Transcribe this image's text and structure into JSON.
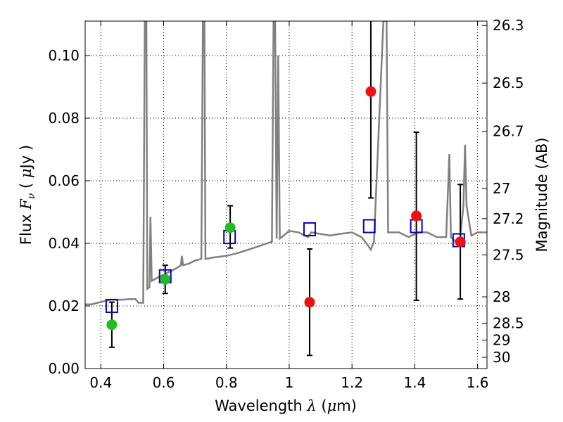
{
  "chart_data": {
    "type": "scatter",
    "xlabel": "Wavelength  λ (μm)",
    "ylabel_left": "Flux  F_ν  ( μJy )",
    "ylabel_right": "Magnitude (AB)",
    "xlim": [
      0.35,
      1.63
    ],
    "ylim": [
      0.0,
      0.111
    ],
    "x_ticks": [
      0.4,
      0.6,
      0.8,
      1.0,
      1.2,
      1.4,
      1.6
    ],
    "x_tick_labels": [
      "0.4",
      "0.6",
      "0.8",
      "1",
      "1.2",
      "1.4",
      "1.6"
    ],
    "y_ticks": [
      0.0,
      0.02,
      0.04,
      0.06,
      0.08,
      0.1
    ],
    "y_tick_labels": [
      "0.00",
      "0.02",
      "0.04",
      "0.06",
      "0.08",
      "0.10"
    ],
    "right_ticks": [
      {
        "label": "26.3",
        "flux": 0.1096
      },
      {
        "label": "26.5",
        "flux": 0.0912
      },
      {
        "label": "26.7",
        "flux": 0.0758
      },
      {
        "label": "27",
        "flux": 0.0575
      },
      {
        "label": "27.2",
        "flux": 0.0479
      },
      {
        "label": "27.5",
        "flux": 0.0363
      },
      {
        "label": "28",
        "flux": 0.0229
      },
      {
        "label": "28.5",
        "flux": 0.0145
      },
      {
        "label": "29",
        "flux": 0.0091
      },
      {
        "label": "30",
        "flux": 0.0036
      }
    ],
    "grid": true,
    "colors": {
      "model": "#808080",
      "model_points": "#0000cc",
      "green_points": "#22bb22",
      "red_points": "#ee1111",
      "errorbar": "#000000"
    },
    "model_spectrum": [
      [
        0.35,
        0.0205
      ],
      [
        0.37,
        0.0205
      ],
      [
        0.39,
        0.021
      ],
      [
        0.41,
        0.0215
      ],
      [
        0.43,
        0.022
      ],
      [
        0.45,
        0.022
      ],
      [
        0.47,
        0.022
      ],
      [
        0.49,
        0.0222
      ],
      [
        0.51,
        0.0222
      ],
      [
        0.52,
        0.021
      ],
      [
        0.535,
        0.021
      ],
      [
        0.54,
        0.111
      ],
      [
        0.545,
        0.111
      ],
      [
        0.548,
        0.0255
      ],
      [
        0.555,
        0.026
      ],
      [
        0.558,
        0.0485
      ],
      [
        0.562,
        0.028
      ],
      [
        0.58,
        0.029
      ],
      [
        0.6,
        0.03
      ],
      [
        0.62,
        0.031
      ],
      [
        0.64,
        0.032
      ],
      [
        0.655,
        0.033
      ],
      [
        0.658,
        0.036
      ],
      [
        0.662,
        0.033
      ],
      [
        0.68,
        0.0335
      ],
      [
        0.7,
        0.0345
      ],
      [
        0.72,
        0.035
      ],
      [
        0.725,
        0.111
      ],
      [
        0.73,
        0.111
      ],
      [
        0.733,
        0.035
      ],
      [
        0.76,
        0.0355
      ],
      [
        0.8,
        0.036
      ],
      [
        0.84,
        0.037
      ],
      [
        0.87,
        0.038
      ],
      [
        0.9,
        0.039
      ],
      [
        0.93,
        0.04
      ],
      [
        0.945,
        0.0405
      ],
      [
        0.95,
        0.111
      ],
      [
        0.955,
        0.111
      ],
      [
        0.96,
        0.0415
      ],
      [
        0.965,
        0.1
      ],
      [
        0.97,
        0.0415
      ],
      [
        1.0,
        0.044
      ],
      [
        1.03,
        0.0435
      ],
      [
        1.06,
        0.042
      ],
      [
        1.07,
        0.0435
      ],
      [
        1.1,
        0.043
      ],
      [
        1.13,
        0.0425
      ],
      [
        1.16,
        0.043
      ],
      [
        1.2,
        0.0435
      ],
      [
        1.23,
        0.042
      ],
      [
        1.25,
        0.0395
      ],
      [
        1.26,
        0.038
      ],
      [
        1.27,
        0.0405
      ],
      [
        1.3,
        0.111
      ],
      [
        1.31,
        0.111
      ],
      [
        1.315,
        0.0435
      ],
      [
        1.35,
        0.0435
      ],
      [
        1.38,
        0.042
      ],
      [
        1.41,
        0.0435
      ],
      [
        1.44,
        0.0435
      ],
      [
        1.47,
        0.042
      ],
      [
        1.5,
        0.042
      ],
      [
        1.51,
        0.0685
      ],
      [
        1.515,
        0.042
      ],
      [
        1.53,
        0.0405
      ],
      [
        1.545,
        0.042
      ],
      [
        1.555,
        0.052
      ],
      [
        1.56,
        0.0715
      ],
      [
        1.565,
        0.052
      ],
      [
        1.58,
        0.0425
      ],
      [
        1.6,
        0.0435
      ],
      [
        1.63,
        0.0435
      ]
    ],
    "model_points": [
      {
        "x": 0.435,
        "y": 0.02
      },
      {
        "x": 0.605,
        "y": 0.0295
      },
      {
        "x": 0.81,
        "y": 0.042
      },
      {
        "x": 1.065,
        "y": 0.0445
      },
      {
        "x": 1.255,
        "y": 0.0455
      },
      {
        "x": 1.405,
        "y": 0.0455
      },
      {
        "x": 1.54,
        "y": 0.041
      }
    ],
    "observed_points": [
      {
        "x": 0.435,
        "y": 0.014,
        "yerr_low": 0.0068,
        "yerr_high": 0.0212,
        "color": "green"
      },
      {
        "x": 0.605,
        "y": 0.0285,
        "yerr_low": 0.024,
        "yerr_high": 0.033,
        "color": "green"
      },
      {
        "x": 0.812,
        "y": 0.045,
        "yerr_low": 0.0385,
        "yerr_high": 0.052,
        "color": "green"
      },
      {
        "x": 1.065,
        "y": 0.0212,
        "yerr_low": 0.0042,
        "yerr_high": 0.0382,
        "color": "red"
      },
      {
        "x": 1.26,
        "y": 0.0885,
        "yerr_low": 0.0545,
        "yerr_high": 0.111,
        "color": "red"
      },
      {
        "x": 1.405,
        "y": 0.0488,
        "yerr_low": 0.0218,
        "yerr_high": 0.0755,
        "color": "red"
      },
      {
        "x": 1.545,
        "y": 0.0405,
        "yerr_low": 0.0222,
        "yerr_high": 0.0588,
        "color": "red"
      }
    ]
  }
}
